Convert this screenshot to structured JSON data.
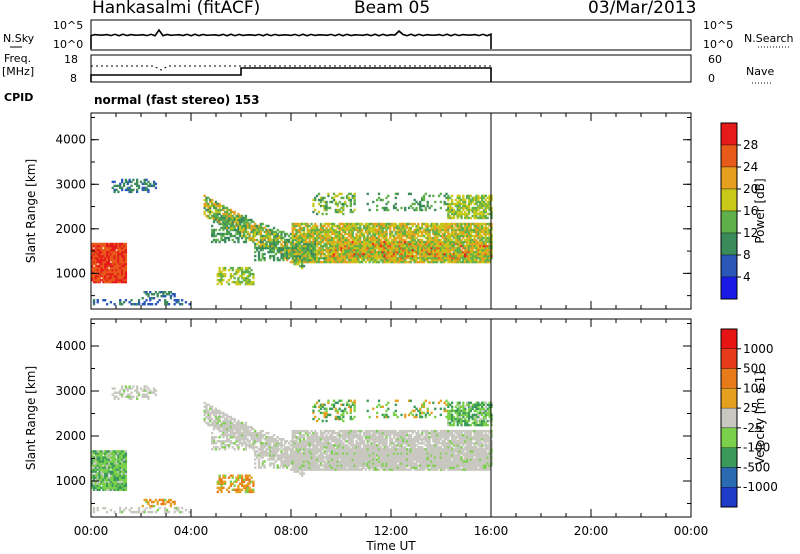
{
  "header": {
    "station": "Hankasalmi (fitACF)",
    "beam": "Beam 05",
    "date": "03/Mar/2013"
  },
  "noise_panel": {
    "left_label": "N.Sky",
    "right_label": "N.Search",
    "left_ticks": [
      "10^5",
      "10^0"
    ],
    "right_ticks": [
      "10^5",
      "10^0"
    ]
  },
  "freq_panel": {
    "left_label": "Freq.",
    "left_unit": "[MHz]",
    "right_label": "Nave",
    "left_ticks": [
      "18",
      "8"
    ],
    "right_ticks": [
      "60",
      "0"
    ]
  },
  "cpid": {
    "label": "CPID",
    "text": "normal (fast stereo) 153"
  },
  "chart_data": [
    {
      "type": "heatmap",
      "name": "power",
      "ylabel": "Slant Range [km]",
      "ylim": [
        200,
        4600
      ],
      "yticks": [
        1000,
        2000,
        3000,
        4000
      ],
      "xlim": [
        0,
        24
      ],
      "colorbar": {
        "label": "Power [dB]",
        "ticks": [
          "4",
          "8",
          "12",
          "16",
          "20",
          "24",
          "28"
        ],
        "colors": [
          "#1a1ae6",
          "#2a56b8",
          "#3a8a5a",
          "#5fb04a",
          "#c8c81a",
          "#e6a020",
          "#e85a1a",
          "#e61a1a"
        ]
      }
    },
    {
      "type": "heatmap",
      "name": "velocity",
      "ylabel": "Slant Range [km]",
      "ylim": [
        200,
        4600
      ],
      "yticks": [
        1000,
        2000,
        3000,
        4000
      ],
      "xlim": [
        0,
        24
      ],
      "xlabel": "Time UT",
      "xticks": [
        "00:00",
        "04:00",
        "08:00",
        "12:00",
        "16:00",
        "20:00",
        "00:00"
      ],
      "colorbar": {
        "label": "Velocity [m s-1]",
        "ticks": [
          "1000",
          "500",
          "100",
          "25",
          "-25",
          "-100",
          "-500",
          "-1000"
        ],
        "colors": [
          "#1e3cc8",
          "#2a6ab0",
          "#3a9a5a",
          "#7ad04a",
          "#c8c8c0",
          "#e6a020",
          "#e87a1a",
          "#e63a1a",
          "#e61414"
        ]
      }
    }
  ]
}
